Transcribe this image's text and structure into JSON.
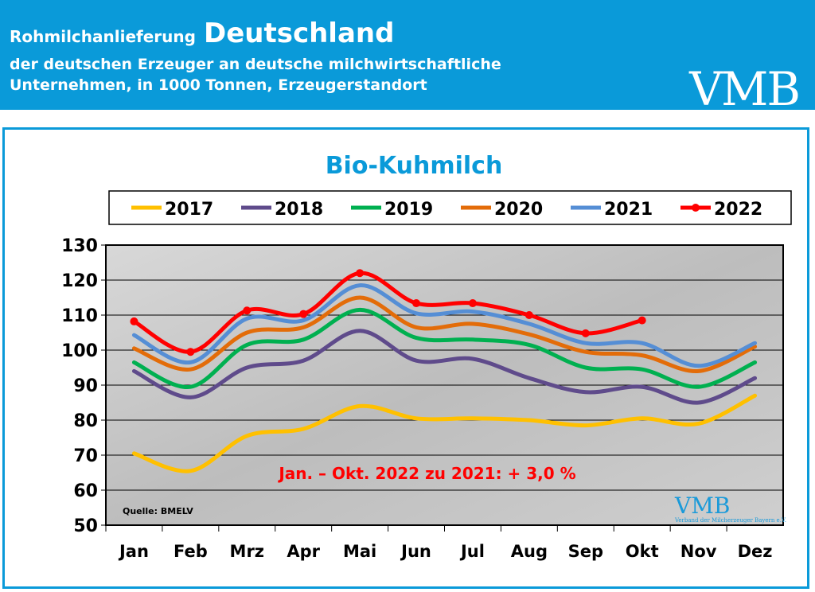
{
  "header": {
    "line1_small": "Rohmilchanlieferung",
    "line1_big": "Deutschland",
    "line2": "der deutschen Erzeuger an deutsche milchwirtschaftliche",
    "line3": "Unternehmen, in 1000 Tonnen, Erzeugerstandort",
    "logo": "VMB"
  },
  "chart_data": {
    "type": "line",
    "title": "Bio-Kuhmilch",
    "categories": [
      "Jan",
      "Feb",
      "Mrz",
      "Apr",
      "Mai",
      "Jun",
      "Jul",
      "Aug",
      "Sep",
      "Okt",
      "Nov",
      "Dez"
    ],
    "ylim": [
      50,
      130
    ],
    "yticks": [
      50,
      60,
      70,
      80,
      90,
      100,
      110,
      120,
      130
    ],
    "grid": true,
    "legend": "top",
    "series": [
      {
        "name": "2017",
        "color": "#ffc000",
        "values": [
          70.5,
          65.5,
          75.5,
          77.5,
          84,
          80.5,
          80.5,
          80,
          78.5,
          80.5,
          79,
          87
        ]
      },
      {
        "name": "2018",
        "color": "#5f4b8b",
        "values": [
          94,
          86.5,
          95,
          97,
          105.5,
          97,
          97.5,
          92,
          88,
          89.5,
          85,
          92
        ]
      },
      {
        "name": "2019",
        "color": "#00b050",
        "values": [
          96.5,
          89.5,
          101.5,
          103,
          111.5,
          103.5,
          103,
          101.5,
          95,
          94.5,
          89.5,
          96.5
        ]
      },
      {
        "name": "2020",
        "color": "#e36c09",
        "values": [
          100.5,
          94.5,
          105,
          106.5,
          115,
          106.5,
          107.5,
          104.5,
          99.5,
          98.5,
          94,
          101
        ]
      },
      {
        "name": "2021",
        "color": "#558ed5",
        "values": [
          104.3,
          96.5,
          109,
          108.5,
          118.5,
          110.5,
          111,
          107.5,
          102,
          102,
          95.5,
          102
        ]
      },
      {
        "name": "2022",
        "color": "#ff0000",
        "markers": true,
        "values": [
          108.2,
          99.5,
          111.3,
          110.3,
          122,
          113.4,
          113.4,
          110,
          104.8,
          108.5,
          null,
          null
        ]
      }
    ],
    "annotation": "Jan. – Okt. 2022 zu 2021: + 3,0 %",
    "source": "Quelle: BMELV",
    "watermark_logo": "VMB",
    "watermark_subtitle": "Verband der Milcherzeuger Bayern e.V."
  }
}
